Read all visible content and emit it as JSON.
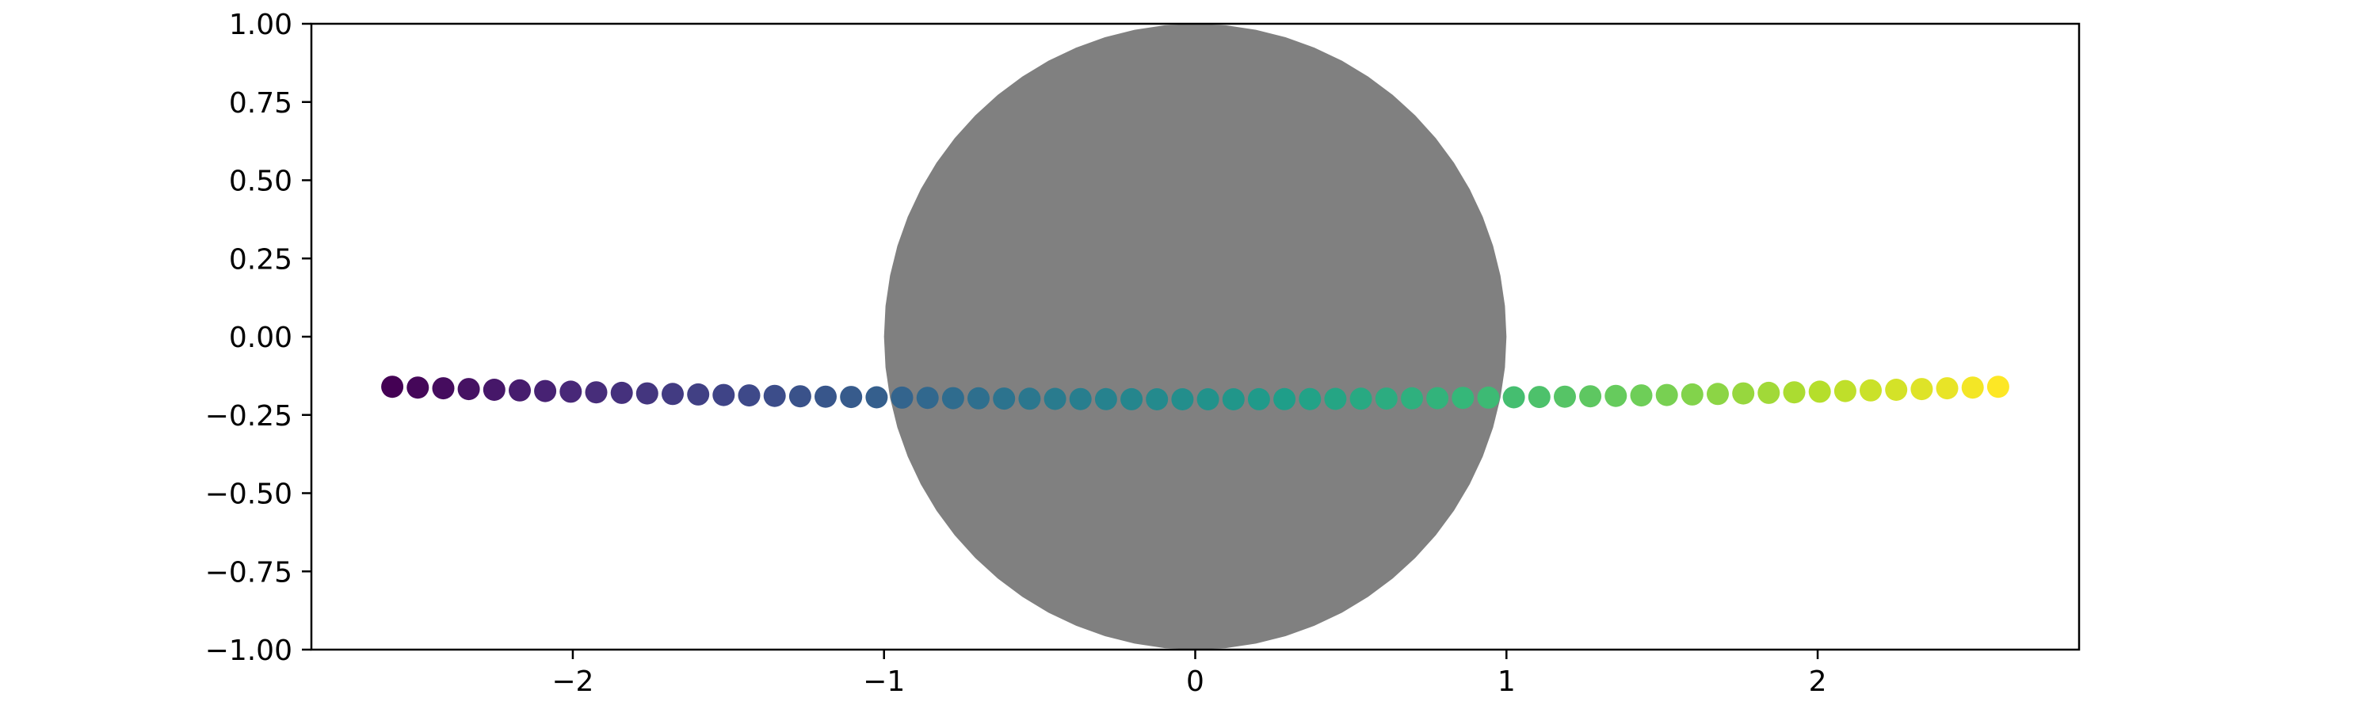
{
  "chart_data": {
    "type": "scatter",
    "title": "",
    "xlabel": "",
    "ylabel": "",
    "xlim": [
      -2.84,
      2.84
    ],
    "ylim": [
      -1.0,
      1.0
    ],
    "grid": false,
    "x_ticks": [
      {
        "value": -2,
        "label": "−2"
      },
      {
        "value": -1,
        "label": "−1"
      },
      {
        "value": 0,
        "label": "0"
      },
      {
        "value": 1,
        "label": "1"
      },
      {
        "value": 2,
        "label": "2"
      }
    ],
    "y_ticks": [
      {
        "value": 1.0,
        "label": "1.00"
      },
      {
        "value": 0.75,
        "label": "0.75"
      },
      {
        "value": 0.5,
        "label": "0.50"
      },
      {
        "value": 0.25,
        "label": "0.25"
      },
      {
        "value": 0.0,
        "label": "0.00"
      },
      {
        "value": -0.25,
        "label": "−0.25"
      },
      {
        "value": -0.5,
        "label": "−0.50"
      },
      {
        "value": -0.75,
        "label": "−0.75"
      },
      {
        "value": -1.0,
        "label": "−1.00"
      }
    ],
    "circle": {
      "center": [
        0,
        0
      ],
      "radius": 1.0,
      "color": "#808080"
    },
    "points": {
      "x_start": -2.58,
      "x_end": 2.58,
      "count": 64,
      "y_edges": -0.16,
      "y_center": -0.2,
      "colormap": "viridis"
    }
  },
  "colors": {
    "circle": "#808080",
    "axes": "#000000",
    "background": "#ffffff",
    "viridis": [
      "#440154",
      "#482878",
      "#3e4989",
      "#31688e",
      "#26828e",
      "#1f9e89",
      "#35b779",
      "#6ece58",
      "#b5de2b",
      "#fde725"
    ]
  }
}
